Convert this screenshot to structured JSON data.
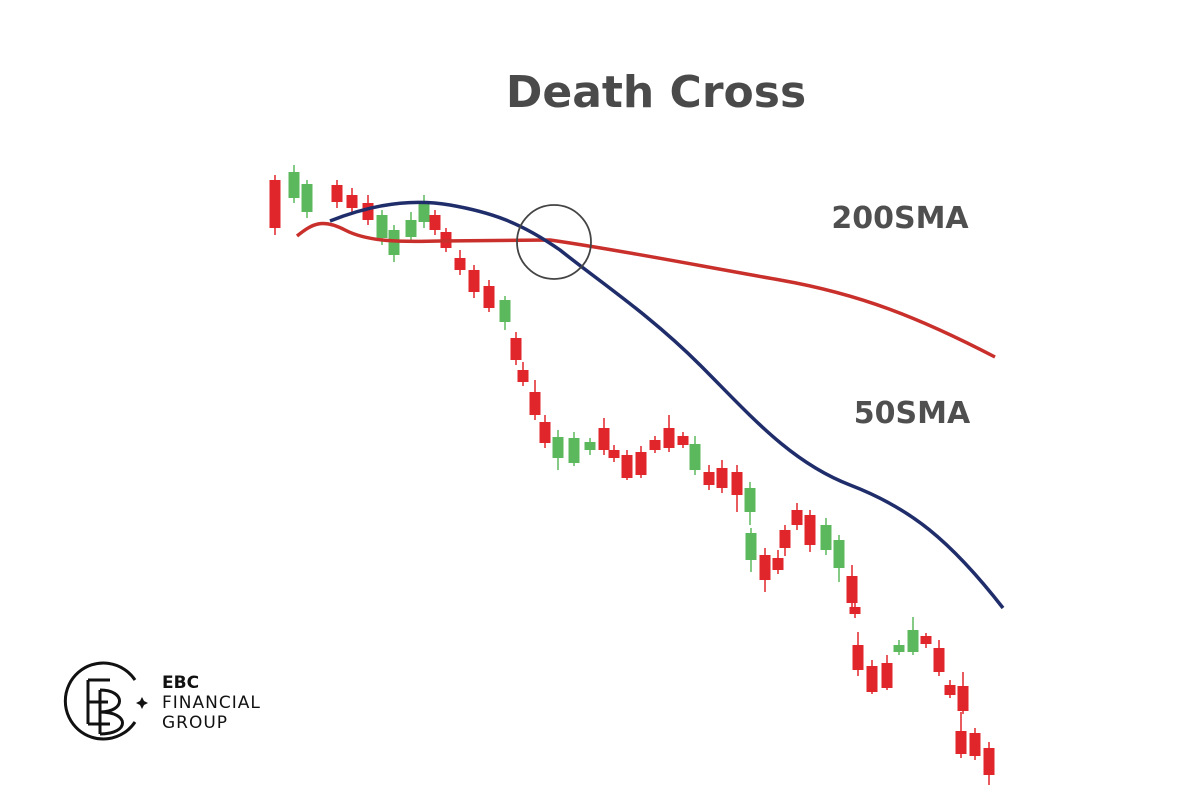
{
  "title": "Death Cross",
  "labels": {
    "sma200": "200SMA",
    "sma50": "50SMA"
  },
  "logo": {
    "name": "EBC",
    "line1": "FINANCIAL",
    "line2": "GROUP"
  }
}
